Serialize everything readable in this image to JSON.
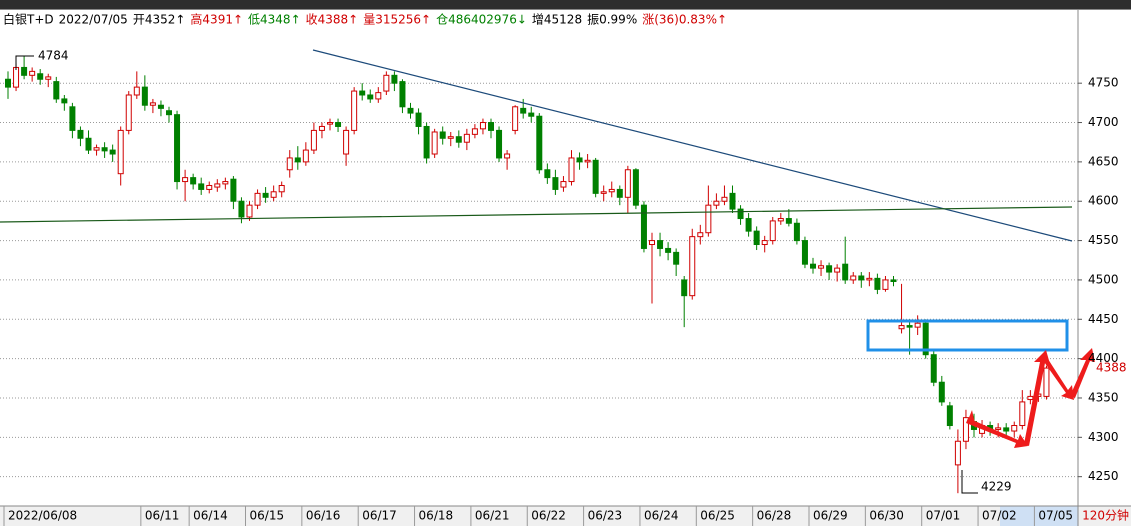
{
  "header": [
    {
      "text": "白银T+D",
      "color": "#000000"
    },
    {
      "text": "2022/07/05",
      "color": "#000000"
    },
    {
      "text": "开4352↑",
      "color": "#000000"
    },
    {
      "text": "高4391↑",
      "color": "#d00000"
    },
    {
      "text": "低4348↑",
      "color": "#008000"
    },
    {
      "text": "收4388↑",
      "color": "#d00000"
    },
    {
      "text": "量315256↑",
      "color": "#d00000"
    },
    {
      "text": "仓486402976↓",
      "color": "#008000"
    },
    {
      "text": "增45128",
      "color": "#000000"
    },
    {
      "text": "振0.99%",
      "color": "#000000"
    },
    {
      "text": "涨(36)0.83%↑",
      "color": "#d00000"
    }
  ],
  "chart_data": {
    "type": "candlestick",
    "categories": [
      "2022/06/08",
      null,
      null,
      null,
      null,
      null,
      null,
      null,
      null,
      null,
      null,
      null,
      null,
      null,
      null,
      null,
      null,
      "06/11",
      null,
      null,
      null,
      null,
      null,
      "06/14",
      null,
      null,
      null,
      null,
      null,
      null,
      "06/15",
      null,
      null,
      null,
      null,
      null,
      null,
      "06/16",
      null,
      null,
      null,
      null,
      null,
      null,
      "06/17",
      null,
      null,
      null,
      null,
      null,
      null,
      "06/18",
      null,
      null,
      null,
      null,
      null,
      null,
      "06/21",
      null,
      null,
      null,
      null,
      null,
      null,
      "06/22",
      null,
      null,
      null,
      null,
      null,
      null,
      "06/23",
      null,
      null,
      null,
      null,
      null,
      null,
      "06/24",
      null,
      null,
      null,
      null,
      null,
      null,
      "06/25",
      null,
      null,
      null,
      null,
      null,
      null,
      "06/28",
      null,
      null,
      null,
      null,
      null,
      null,
      "06/29",
      null,
      null,
      null,
      null,
      null,
      null,
      "06/30",
      null,
      null,
      null,
      null,
      null,
      null,
      "07/01",
      null,
      null,
      null,
      null,
      null,
      null,
      "07/02",
      null,
      null,
      null,
      null,
      null,
      null,
      "07/05",
      null
    ],
    "open": [
      4755,
      4745,
      4770,
      4760,
      4762,
      4755,
      4752,
      4730,
      4720,
      4690,
      4680,
      4665,
      4668,
      4665,
      4635,
      4690,
      4735,
      4745,
      4722,
      4722,
      4715,
      4710,
      4625,
      4630,
      4622,
      4615,
      4618,
      4622,
      4628,
      4600,
      4580,
      4595,
      4610,
      4605,
      4612,
      4640,
      4655,
      4650,
      4665,
      4690,
      4698,
      4700,
      4660,
      4690,
      4740,
      4735,
      4730,
      4740,
      4760,
      4752,
      4718,
      4712,
      4695,
      4660,
      4688,
      4680,
      4682,
      4675,
      4685,
      4692,
      4700,
      4690,
      4655,
      4690,
      4718,
      4712,
      4708,
      4640,
      4630,
      4618,
      4625,
      4655,
      4650,
      4652,
      4610,
      4612,
      4615,
      4605,
      4640,
      4595,
      4545,
      4550,
      4540,
      4535,
      4500,
      4480,
      4555,
      4560,
      4595,
      4600,
      4610,
      4590,
      4578,
      4562,
      4545,
      4550,
      4575,
      4578,
      4572,
      4550,
      4520,
      4515,
      4518,
      4510,
      4520,
      4500,
      4505,
      4500,
      4502,
      4488,
      4500,
      4438,
      4442,
      4440,
      4445,
      4405,
      4370,
      4340,
      4265,
      4295,
      4320,
      4305,
      4315,
      4310,
      4312,
      4308,
      4315,
      4348,
      4352,
      4352
    ],
    "high": [
      4765,
      4775,
      4784,
      4770,
      4768,
      4762,
      4758,
      4735,
      4725,
      4695,
      4690,
      4672,
      4675,
      4672,
      4695,
      4740,
      4765,
      4760,
      4730,
      4728,
      4720,
      4715,
      4640,
      4635,
      4630,
      4625,
      4628,
      4630,
      4632,
      4605,
      4600,
      4615,
      4618,
      4620,
      4625,
      4665,
      4670,
      4675,
      4700,
      4700,
      4705,
      4705,
      4695,
      4745,
      4750,
      4742,
      4745,
      4765,
      4765,
      4755,
      4725,
      4718,
      4700,
      4692,
      4695,
      4688,
      4690,
      4692,
      4698,
      4705,
      4705,
      4695,
      4665,
      4722,
      4730,
      4720,
      4712,
      4648,
      4640,
      4632,
      4665,
      4662,
      4660,
      4655,
      4620,
      4625,
      4620,
      4645,
      4642,
      4600,
      4560,
      4560,
      4548,
      4540,
      4505,
      4565,
      4570,
      4620,
      4610,
      4620,
      4620,
      4595,
      4585,
      4568,
      4556,
      4580,
      4585,
      4590,
      4578,
      4555,
      4528,
      4525,
      4522,
      4520,
      4555,
      4510,
      4510,
      4510,
      4508,
      4505,
      4505,
      4495,
      4450,
      4455,
      4450,
      4410,
      4378,
      4345,
      4310,
      4335,
      4330,
      4322,
      4320,
      4318,
      4318,
      4320,
      4360,
      4360,
      4365,
      4391
    ],
    "low": [
      4730,
      4740,
      4755,
      4752,
      4748,
      4745,
      4725,
      4715,
      4680,
      4670,
      4660,
      4658,
      4655,
      4650,
      4620,
      4685,
      4730,
      4715,
      4712,
      4708,
      4700,
      4615,
      4600,
      4615,
      4608,
      4610,
      4612,
      4615,
      4590,
      4572,
      4575,
      4590,
      4598,
      4600,
      4605,
      4630,
      4640,
      4645,
      4660,
      4680,
      4690,
      4688,
      4645,
      4685,
      4728,
      4725,
      4725,
      4735,
      4740,
      4712,
      4705,
      4685,
      4648,
      4655,
      4672,
      4670,
      4668,
      4665,
      4680,
      4685,
      4680,
      4650,
      4640,
      4685,
      4705,
      4700,
      4635,
      4622,
      4608,
      4612,
      4620,
      4640,
      4642,
      4605,
      4600,
      4605,
      4595,
      4585,
      4590,
      4535,
      4470,
      4530,
      4525,
      4505,
      4440,
      4475,
      4545,
      4555,
      4590,
      4595,
      4585,
      4570,
      4555,
      4538,
      4535,
      4545,
      4570,
      4568,
      4545,
      4515,
      4508,
      4505,
      4500,
      4498,
      4495,
      4495,
      4490,
      4492,
      4482,
      4485,
      4492,
      4432,
      4405,
      4430,
      4400,
      4365,
      4340,
      4310,
      4229,
      4285,
      4300,
      4300,
      4302,
      4300,
      4298,
      4300,
      4310,
      4342,
      4345,
      4348
    ],
    "close": [
      4745,
      4770,
      4760,
      4765,
      4755,
      4758,
      4730,
      4725,
      4690,
      4680,
      4665,
      4668,
      4664,
      4660,
      4690,
      4735,
      4745,
      4722,
      4725,
      4718,
      4710,
      4625,
      4630,
      4622,
      4615,
      4620,
      4622,
      4625,
      4600,
      4580,
      4595,
      4610,
      4605,
      4612,
      4620,
      4655,
      4650,
      4665,
      4690,
      4695,
      4700,
      4695,
      4690,
      4740,
      4735,
      4730,
      4738,
      4760,
      4750,
      4720,
      4712,
      4695,
      4655,
      4688,
      4680,
      4682,
      4675,
      4685,
      4692,
      4700,
      4690,
      4655,
      4660,
      4720,
      4712,
      4708,
      4640,
      4630,
      4615,
      4625,
      4655,
      4650,
      4652,
      4610,
      4612,
      4615,
      4605,
      4640,
      4595,
      4540,
      4550,
      4540,
      4535,
      4520,
      4480,
      4555,
      4560,
      4595,
      4600,
      4605,
      4590,
      4578,
      4562,
      4545,
      4550,
      4575,
      4578,
      4572,
      4550,
      4520,
      4515,
      4518,
      4510,
      4515,
      4500,
      4505,
      4500,
      4502,
      4488,
      4500,
      4498,
      4442,
      4440,
      4445,
      4405,
      4370,
      4345,
      4315,
      4295,
      4325,
      4310,
      4315,
      4310,
      4312,
      4308,
      4315,
      4345,
      4352,
      4355,
      4388
    ],
    "up_color": "#d00000",
    "down_color": "#008000",
    "ylim": [
      4214,
      4843
    ],
    "yticks": [
      4250,
      4300,
      4350,
      4400,
      4450,
      4500,
      4550,
      4600,
      4650,
      4700,
      4750
    ],
    "grid": true,
    "annotations": [
      "4784",
      "4229"
    ],
    "last_price_label": "4388",
    "period": "120分钟"
  }
}
